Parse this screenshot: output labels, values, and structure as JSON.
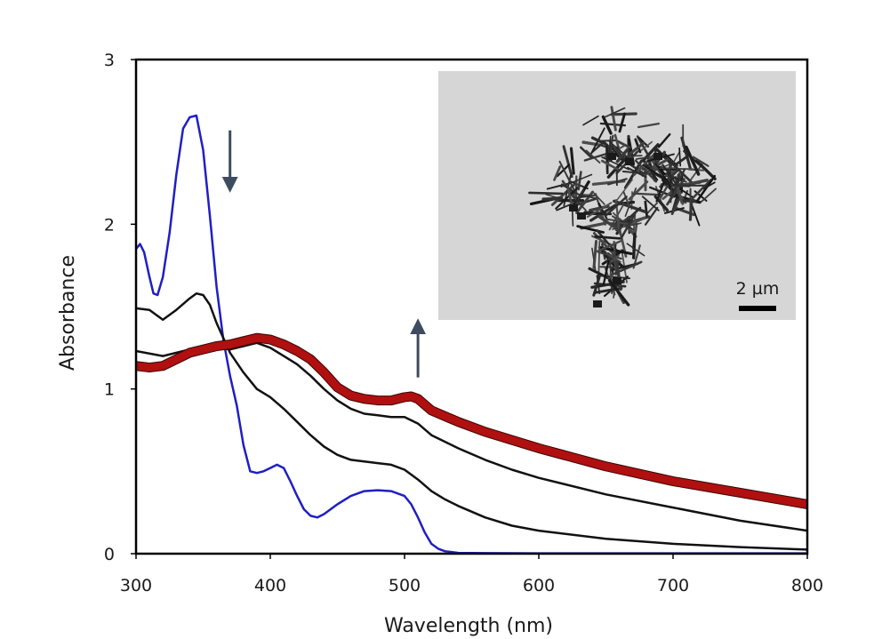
{
  "chart_data": {
    "type": "line",
    "xlabel": "Wavelength (nm)",
    "ylabel": "Absorbance",
    "xlim": [
      300,
      800
    ],
    "ylim": [
      0,
      3
    ],
    "x_ticks": [
      "300",
      "400",
      "500",
      "600",
      "700",
      "800"
    ],
    "y_ticks": [
      "0",
      "1",
      "2",
      "3"
    ],
    "grid": false,
    "legend": "none",
    "colors": {
      "initial": "#1f1fc4",
      "intermediate": "#111111",
      "final": "#b01010",
      "arrow": "#3f4c5e"
    },
    "series": [
      {
        "style": "initial",
        "points": [
          [
            300,
            1.85
          ],
          [
            303,
            1.88
          ],
          [
            306,
            1.83
          ],
          [
            310,
            1.68
          ],
          [
            313,
            1.58
          ],
          [
            316,
            1.57
          ],
          [
            320,
            1.68
          ],
          [
            325,
            1.95
          ],
          [
            330,
            2.3
          ],
          [
            335,
            2.58
          ],
          [
            340,
            2.65
          ],
          [
            345,
            2.66
          ],
          [
            350,
            2.45
          ],
          [
            355,
            2.05
          ],
          [
            360,
            1.62
          ],
          [
            365,
            1.3
          ],
          [
            370,
            1.08
          ],
          [
            375,
            0.9
          ],
          [
            380,
            0.66
          ],
          [
            385,
            0.5
          ],
          [
            390,
            0.49
          ],
          [
            395,
            0.5
          ],
          [
            400,
            0.52
          ],
          [
            405,
            0.54
          ],
          [
            410,
            0.52
          ],
          [
            415,
            0.44
          ],
          [
            420,
            0.35
          ],
          [
            425,
            0.27
          ],
          [
            430,
            0.23
          ],
          [
            435,
            0.22
          ],
          [
            440,
            0.24
          ],
          [
            450,
            0.3
          ],
          [
            460,
            0.35
          ],
          [
            470,
            0.38
          ],
          [
            480,
            0.385
          ],
          [
            490,
            0.38
          ],
          [
            500,
            0.35
          ],
          [
            505,
            0.3
          ],
          [
            510,
            0.22
          ],
          [
            515,
            0.13
          ],
          [
            520,
            0.06
          ],
          [
            525,
            0.03
          ],
          [
            530,
            0.015
          ],
          [
            540,
            0.005
          ],
          [
            560,
            0.003
          ],
          [
            600,
            0.002
          ],
          [
            700,
            0.002
          ],
          [
            800,
            0.002
          ]
        ]
      },
      {
        "style": "intermediate",
        "points": [
          [
            300,
            1.49
          ],
          [
            310,
            1.48
          ],
          [
            320,
            1.42
          ],
          [
            330,
            1.48
          ],
          [
            340,
            1.55
          ],
          [
            345,
            1.58
          ],
          [
            350,
            1.57
          ],
          [
            355,
            1.51
          ],
          [
            360,
            1.4
          ],
          [
            370,
            1.22
          ],
          [
            380,
            1.1
          ],
          [
            390,
            1.0
          ],
          [
            400,
            0.95
          ],
          [
            410,
            0.88
          ],
          [
            420,
            0.8
          ],
          [
            430,
            0.72
          ],
          [
            440,
            0.65
          ],
          [
            450,
            0.6
          ],
          [
            460,
            0.57
          ],
          [
            470,
            0.56
          ],
          [
            480,
            0.55
          ],
          [
            490,
            0.54
          ],
          [
            500,
            0.51
          ],
          [
            510,
            0.45
          ],
          [
            520,
            0.38
          ],
          [
            530,
            0.33
          ],
          [
            540,
            0.29
          ],
          [
            560,
            0.22
          ],
          [
            580,
            0.17
          ],
          [
            600,
            0.14
          ],
          [
            650,
            0.09
          ],
          [
            700,
            0.06
          ],
          [
            750,
            0.04
          ],
          [
            800,
            0.025
          ]
        ]
      },
      {
        "style": "intermediate",
        "points": [
          [
            300,
            1.23
          ],
          [
            320,
            1.2
          ],
          [
            340,
            1.24
          ],
          [
            350,
            1.26
          ],
          [
            360,
            1.25
          ],
          [
            370,
            1.24
          ],
          [
            380,
            1.26
          ],
          [
            390,
            1.28
          ],
          [
            400,
            1.25
          ],
          [
            410,
            1.2
          ],
          [
            420,
            1.15
          ],
          [
            430,
            1.08
          ],
          [
            440,
            1.0
          ],
          [
            450,
            0.93
          ],
          [
            460,
            0.88
          ],
          [
            470,
            0.85
          ],
          [
            480,
            0.84
          ],
          [
            490,
            0.83
          ],
          [
            500,
            0.83
          ],
          [
            510,
            0.79
          ],
          [
            520,
            0.72
          ],
          [
            540,
            0.64
          ],
          [
            560,
            0.57
          ],
          [
            580,
            0.51
          ],
          [
            600,
            0.46
          ],
          [
            650,
            0.36
          ],
          [
            700,
            0.28
          ],
          [
            750,
            0.2
          ],
          [
            800,
            0.14
          ]
        ]
      },
      {
        "style": "final",
        "points": [
          [
            300,
            1.14
          ],
          [
            310,
            1.13
          ],
          [
            320,
            1.14
          ],
          [
            330,
            1.18
          ],
          [
            340,
            1.22
          ],
          [
            350,
            1.24
          ],
          [
            360,
            1.26
          ],
          [
            370,
            1.27
          ],
          [
            380,
            1.29
          ],
          [
            390,
            1.31
          ],
          [
            400,
            1.3
          ],
          [
            410,
            1.27
          ],
          [
            420,
            1.23
          ],
          [
            430,
            1.18
          ],
          [
            440,
            1.1
          ],
          [
            450,
            1.01
          ],
          [
            460,
            0.96
          ],
          [
            470,
            0.94
          ],
          [
            480,
            0.93
          ],
          [
            490,
            0.93
          ],
          [
            500,
            0.95
          ],
          [
            505,
            0.955
          ],
          [
            510,
            0.94
          ],
          [
            520,
            0.87
          ],
          [
            540,
            0.8
          ],
          [
            560,
            0.74
          ],
          [
            580,
            0.69
          ],
          [
            600,
            0.64
          ],
          [
            650,
            0.53
          ],
          [
            700,
            0.44
          ],
          [
            750,
            0.37
          ],
          [
            800,
            0.3
          ]
        ]
      }
    ],
    "arrows": [
      {
        "x": 370,
        "y_from": 2.57,
        "y_to": 2.24
      },
      {
        "x": 510,
        "y_from": 1.07,
        "y_to": 1.38
      }
    ],
    "inset": {
      "scale_label": "2 µm"
    }
  }
}
